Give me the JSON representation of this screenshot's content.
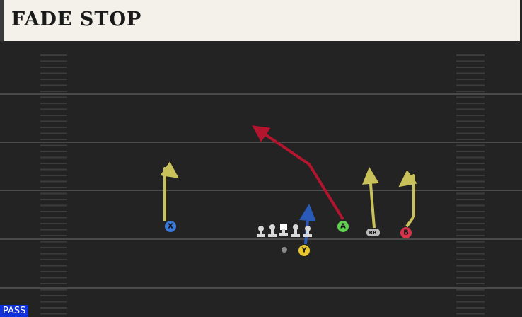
{
  "header": {
    "title": "FADE STOP"
  },
  "play_type": "PASS",
  "players": [
    {
      "label": "X"
    },
    {
      "label": "A"
    },
    {
      "label": "RB"
    },
    {
      "label": "B"
    },
    {
      "label": "Y"
    }
  ]
}
